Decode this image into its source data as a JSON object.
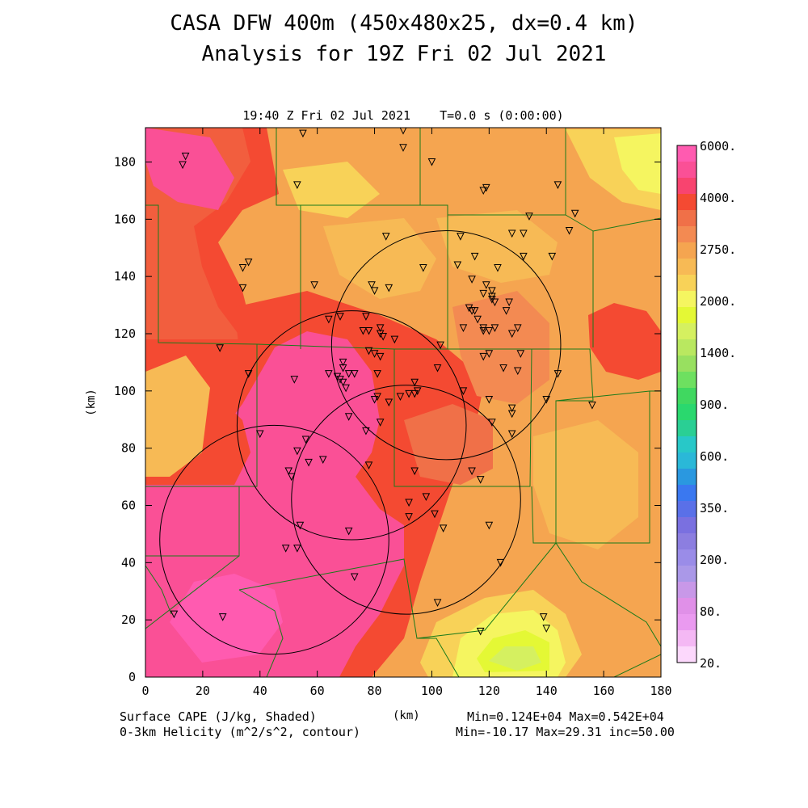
{
  "header": {
    "title": "CASA DFW 400m (450x480x25, dx=0.4 km)",
    "subtitle": "Analysis for 19Z Fri 02 Jul 2021",
    "time_label": "19:40 Z Fri 02 Jul 2021    T=0.0 s (0:00:00)"
  },
  "footer": {
    "field1": "Surface CAPE (J/kg, Shaded)",
    "field2": "0-3km Helicity (m^2/s^2, contour)",
    "xunit": "(km)",
    "stats1": "Min=0.124E+04 Max=0.542E+04",
    "stats2": "Min=-10.17 Max=29.31 inc=50.00"
  },
  "chart_data": {
    "type": "heatmap",
    "xlabel": "(km)",
    "ylabel": "(km)",
    "xlim": [
      0,
      180
    ],
    "ylim": [
      0,
      192
    ],
    "x_ticks": [
      "0",
      "20",
      "40",
      "60",
      "80",
      "100",
      "120",
      "140",
      "160",
      "180"
    ],
    "y_ticks": [
      "0",
      "20",
      "40",
      "60",
      "80",
      "100",
      "120",
      "140",
      "160",
      "180"
    ],
    "colorbar": {
      "labels": [
        "6000.",
        "4000.",
        "2750.",
        "2000.",
        "1400.",
        "900.",
        "600.",
        "350.",
        "200.",
        "80.",
        "20."
      ],
      "colors": [
        "#ff5bb0",
        "#fa5096",
        "#f8446f",
        "#f44a32",
        "#f07048",
        "#f38a52",
        "#f5a550",
        "#f7ba55",
        "#f8d258",
        "#f5f560",
        "#e4f835",
        "#d5f060",
        "#b9e860",
        "#98e060",
        "#6ee060",
        "#40d860",
        "#2ad86e",
        "#2acf94",
        "#28c8c8",
        "#2ab8d8",
        "#2a98e0",
        "#3a78f0",
        "#5a70e8",
        "#7a70e0",
        "#8c7ee0",
        "#9a8ce8",
        "#aa98e8",
        "#c898e8",
        "#e090e8",
        "#ea9af0",
        "#f4b8f4",
        "#fcd8fc"
      ]
    },
    "cape_min": 1240,
    "cape_max": 5420,
    "helicity_min": -10.17,
    "helicity_max": 29.31,
    "helicity_inc": 50.0,
    "radar_circles": [
      {
        "cx": 45,
        "cy": 48
      },
      {
        "cx": 72,
        "cy": 88
      },
      {
        "cx": 91,
        "cy": 62
      },
      {
        "cx": 105,
        "cy": 116
      }
    ],
    "radar_radius_km": 40,
    "stations": [
      [
        14,
        182
      ],
      [
        13,
        179
      ],
      [
        55,
        190
      ],
      [
        90,
        191
      ],
      [
        90,
        185
      ],
      [
        100,
        180
      ],
      [
        53,
        172
      ],
      [
        118,
        170
      ],
      [
        119,
        171
      ],
      [
        144,
        172
      ],
      [
        134,
        161
      ],
      [
        150,
        162
      ],
      [
        148,
        156
      ],
      [
        84,
        154
      ],
      [
        110,
        154
      ],
      [
        128,
        155
      ],
      [
        132,
        155
      ],
      [
        115,
        147
      ],
      [
        132,
        147
      ],
      [
        142,
        147
      ],
      [
        34,
        143
      ],
      [
        36,
        145
      ],
      [
        97,
        143
      ],
      [
        109,
        144
      ],
      [
        123,
        143
      ],
      [
        59,
        137
      ],
      [
        34,
        136
      ],
      [
        79,
        137
      ],
      [
        80,
        135
      ],
      [
        85,
        136
      ],
      [
        114,
        139
      ],
      [
        119,
        137
      ],
      [
        121,
        135
      ],
      [
        118,
        134
      ],
      [
        121,
        133
      ],
      [
        121,
        132
      ],
      [
        122,
        131
      ],
      [
        127,
        131
      ],
      [
        113,
        129
      ],
      [
        114,
        128
      ],
      [
        115,
        128
      ],
      [
        126,
        128
      ],
      [
        116,
        125
      ],
      [
        68,
        126
      ],
      [
        77,
        126
      ],
      [
        118,
        122
      ],
      [
        120,
        121
      ],
      [
        118,
        121
      ],
      [
        122,
        122
      ],
      [
        130,
        122
      ],
      [
        111,
        122
      ],
      [
        82,
        122
      ],
      [
        78,
        121
      ],
      [
        76,
        121
      ],
      [
        82,
        120
      ],
      [
        87,
        118
      ],
      [
        83,
        119
      ],
      [
        128,
        120
      ],
      [
        64,
        125
      ],
      [
        103,
        116
      ],
      [
        78,
        114
      ],
      [
        80,
        113
      ],
      [
        82,
        112
      ],
      [
        118,
        112
      ],
      [
        131,
        113
      ],
      [
        26,
        115
      ],
      [
        36,
        106
      ],
      [
        52,
        104
      ],
      [
        64,
        106
      ],
      [
        67,
        105
      ],
      [
        68,
        104
      ],
      [
        69,
        103
      ],
      [
        71,
        106
      ],
      [
        73,
        106
      ],
      [
        81,
        106
      ],
      [
        125,
        108
      ],
      [
        130,
        107
      ],
      [
        144,
        106
      ],
      [
        69,
        108
      ],
      [
        69,
        110
      ],
      [
        102,
        108
      ],
      [
        120,
        113
      ],
      [
        70,
        101
      ],
      [
        94,
        103
      ],
      [
        95,
        100
      ],
      [
        94,
        99
      ],
      [
        111,
        100
      ],
      [
        81,
        98
      ],
      [
        89,
        98
      ],
      [
        120,
        97
      ],
      [
        140,
        97
      ],
      [
        156,
        95
      ],
      [
        80,
        97
      ],
      [
        85,
        96
      ],
      [
        92,
        99
      ],
      [
        128,
        94
      ],
      [
        128,
        92
      ],
      [
        71,
        91
      ],
      [
        82,
        89
      ],
      [
        121,
        89
      ],
      [
        77,
        86
      ],
      [
        128,
        85
      ],
      [
        40,
        85
      ],
      [
        56,
        83
      ],
      [
        53,
        79
      ],
      [
        57,
        75
      ],
      [
        62,
        76
      ],
      [
        78,
        74
      ],
      [
        114,
        72
      ],
      [
        50,
        72
      ],
      [
        51,
        70
      ],
      [
        94,
        72
      ],
      [
        117,
        69
      ],
      [
        98,
        63
      ],
      [
        92,
        61
      ],
      [
        92,
        56
      ],
      [
        101,
        57
      ],
      [
        54,
        53
      ],
      [
        71,
        51
      ],
      [
        104,
        52
      ],
      [
        120,
        53
      ],
      [
        53,
        45
      ],
      [
        49,
        45
      ],
      [
        124,
        40
      ],
      [
        73,
        35
      ],
      [
        102,
        26
      ],
      [
        10,
        22
      ],
      [
        27,
        21
      ],
      [
        139,
        21
      ],
      [
        140,
        17
      ],
      [
        117,
        16
      ]
    ]
  }
}
